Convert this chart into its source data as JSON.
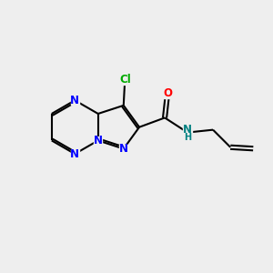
{
  "bg_color": "#eeeeee",
  "bond_color": "#000000",
  "n_color": "#0000ff",
  "o_color": "#ff0000",
  "cl_color": "#00aa00",
  "nh_color": "#008080",
  "lw": 1.5,
  "fs": 8.5,
  "xlim": [
    0,
    10
  ],
  "ylim": [
    0,
    10
  ]
}
